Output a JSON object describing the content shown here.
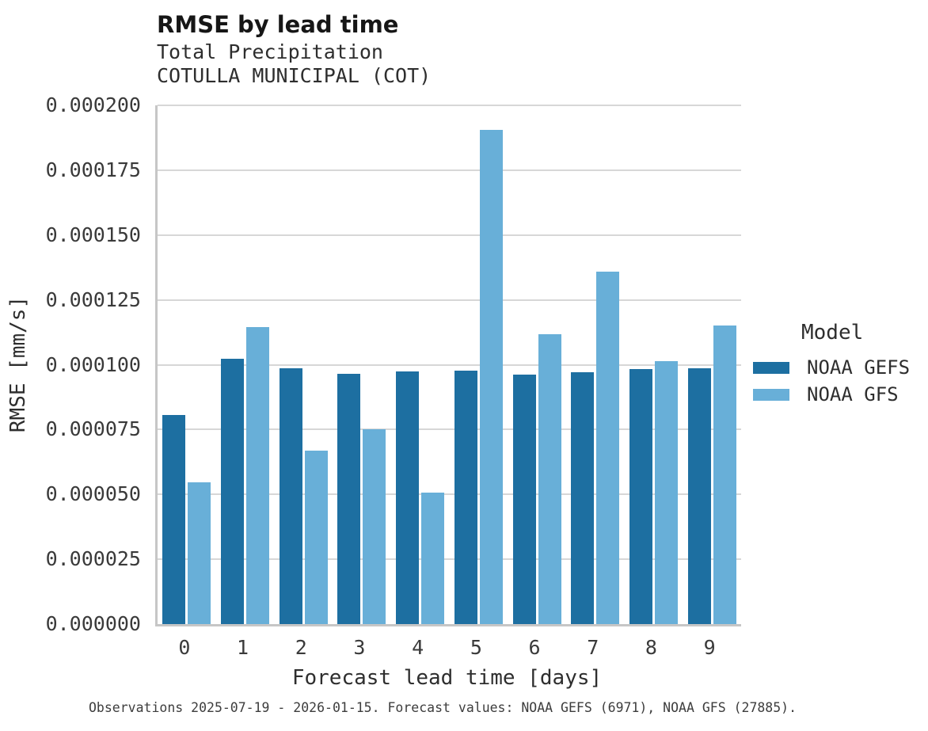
{
  "header": {
    "title": "RMSE by lead time",
    "subtitle_line1": "Total Precipitation",
    "subtitle_line2": "COTULLA MUNICIPAL (COT)"
  },
  "caption": "Observations 2025-07-19 - 2026-01-15. Forecast values: NOAA GEFS (6971), NOAA GFS (27885).",
  "colors": {
    "noaa_gefs": "#1d6fa1",
    "noaa_gfs": "#68afd8",
    "gridline": "#d7d7d7",
    "spine": "#c6c6c6",
    "text": "#2e2e2e"
  },
  "legend": {
    "title": "Model"
  },
  "chart_data": {
    "type": "bar",
    "title": "RMSE by lead time",
    "subtitle": [
      "Total Precipitation",
      "COTULLA MUNICIPAL (COT)"
    ],
    "xlabel": "Forecast lead time [days]",
    "ylabel": "RMSE [mm/s]",
    "categories": [
      0,
      1,
      2,
      3,
      4,
      5,
      6,
      7,
      8,
      9
    ],
    "series": [
      {
        "name": "NOAA GEFS",
        "color": "#1d6fa1",
        "values": [
          8.05e-05,
          0.0001022,
          9.85e-05,
          9.66e-05,
          9.73e-05,
          9.78e-05,
          9.62e-05,
          9.71e-05,
          9.84e-05,
          9.86e-05
        ]
      },
      {
        "name": "NOAA GFS",
        "color": "#68afd8",
        "values": [
          5.47e-05,
          0.0001144,
          6.68e-05,
          7.5e-05,
          5.06e-05,
          0.0001907,
          0.0001118,
          0.000136,
          0.0001015,
          0.0001151
        ]
      }
    ],
    "ylim": [
      0,
      0.0002
    ],
    "ytick_step": 2.5e-05,
    "ytick_labels": [
      "0.000000",
      "0.000025",
      "0.000050",
      "0.000075",
      "0.000100",
      "0.000125",
      "0.000150",
      "0.000175",
      "0.000200"
    ],
    "grid": true,
    "legend_title": "Model",
    "legend_position": "right"
  }
}
